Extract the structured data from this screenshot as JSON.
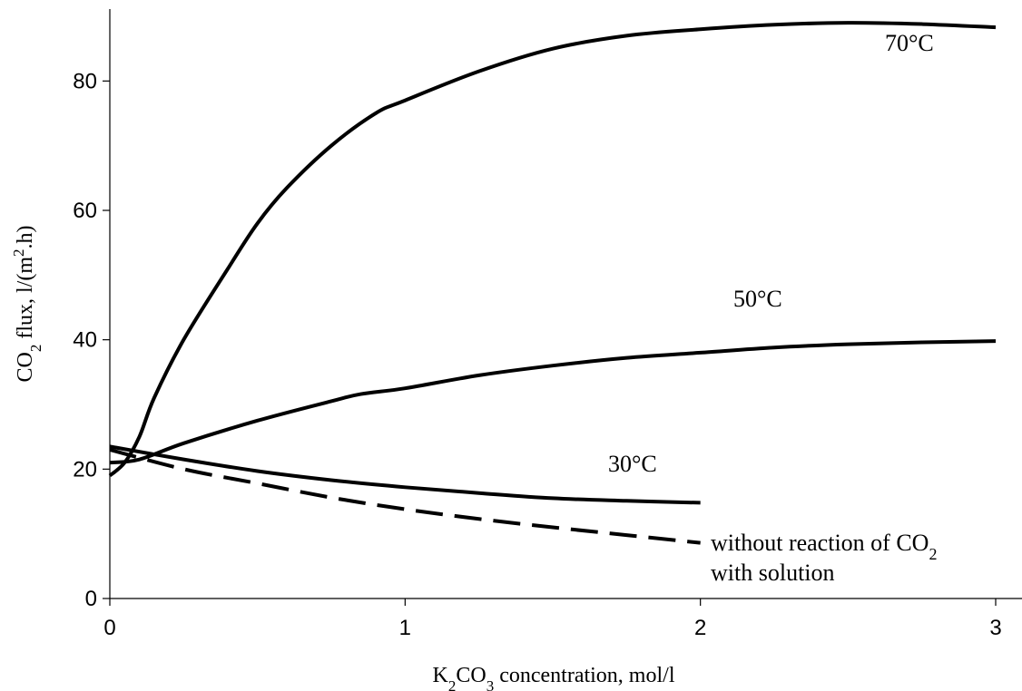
{
  "chart_data": {
    "type": "line",
    "xlim": [
      0,
      3
    ],
    "ylim": [
      0,
      90
    ],
    "x_ticks": [
      {
        "value": 0,
        "label": "0"
      },
      {
        "value": 1,
        "label": "1"
      },
      {
        "value": 2,
        "label": "2"
      },
      {
        "value": 3,
        "label": "3"
      }
    ],
    "y_ticks": [
      {
        "value": 0,
        "label": "0"
      },
      {
        "value": 20,
        "label": "20"
      },
      {
        "value": 40,
        "label": "40"
      },
      {
        "value": 60,
        "label": "60"
      },
      {
        "value": 80,
        "label": "80"
      }
    ],
    "xlabel": {
      "main": "K",
      "sub1": "2",
      "mid": "CO",
      "sub2": "3",
      "rest": " concentration, mol/l"
    },
    "ylabel": {
      "main": "CO",
      "sub": "2",
      "mid": " flux, l/(m",
      "sup": "2",
      "rest": ".h)"
    },
    "grid": false,
    "series": [
      {
        "label": "70°C",
        "dashed": false,
        "points": [
          [
            0,
            19
          ],
          [
            0.05,
            21
          ],
          [
            0.1,
            25
          ],
          [
            0.15,
            31
          ],
          [
            0.25,
            40
          ],
          [
            0.4,
            51
          ],
          [
            0.5,
            58
          ],
          [
            0.6,
            63.5
          ],
          [
            0.75,
            70
          ],
          [
            0.9,
            75
          ],
          [
            1,
            77
          ],
          [
            1.25,
            81.5
          ],
          [
            1.5,
            85
          ],
          [
            1.75,
            87
          ],
          [
            2,
            88
          ],
          [
            2.25,
            88.7
          ],
          [
            2.5,
            89
          ],
          [
            2.75,
            88.8
          ],
          [
            3,
            88.3
          ]
        ]
      },
      {
        "label": "50°C",
        "dashed": false,
        "points": [
          [
            0,
            21
          ],
          [
            0.1,
            21.5
          ],
          [
            0.25,
            24
          ],
          [
            0.5,
            27.5
          ],
          [
            0.75,
            30.5
          ],
          [
            0.85,
            31.6
          ],
          [
            1,
            32.5
          ],
          [
            1.25,
            34.5
          ],
          [
            1.5,
            36
          ],
          [
            1.75,
            37.2
          ],
          [
            2,
            38
          ],
          [
            2.25,
            38.8
          ],
          [
            2.5,
            39.3
          ],
          [
            2.75,
            39.6
          ],
          [
            3,
            39.8
          ]
        ]
      },
      {
        "label": "30°C",
        "dashed": false,
        "points": [
          [
            0,
            23.5
          ],
          [
            0.25,
            21.5
          ],
          [
            0.5,
            19.7
          ],
          [
            0.75,
            18.3
          ],
          [
            1,
            17.2
          ],
          [
            1.25,
            16.3
          ],
          [
            1.5,
            15.5
          ],
          [
            1.75,
            15.1
          ],
          [
            2,
            14.8
          ]
        ]
      },
      {
        "label_line1": "without reaction of CO",
        "label_sub": "2",
        "label_line2": "with solution",
        "dashed": true,
        "points": [
          [
            0,
            23
          ],
          [
            0.25,
            20
          ],
          [
            0.5,
            17.8
          ],
          [
            0.75,
            15.6
          ],
          [
            1,
            13.8
          ],
          [
            1.25,
            12.3
          ],
          [
            1.5,
            11
          ],
          [
            1.75,
            9.8
          ],
          [
            2,
            8.6
          ]
        ]
      }
    ]
  }
}
